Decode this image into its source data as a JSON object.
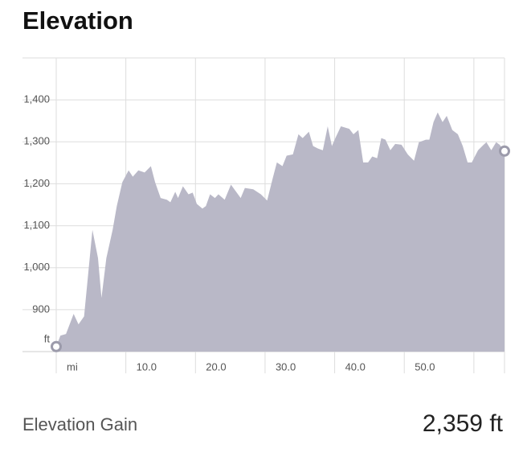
{
  "chart_data": {
    "type": "area",
    "title": "Elevation",
    "x_unit": "mi",
    "y_unit": "ft",
    "color": "#b9b8c7",
    "grid": true,
    "xlim": [
      0,
      64.4
    ],
    "ylim": [
      800,
      1500
    ],
    "xticks": [
      {
        "value": 0,
        "label": null
      },
      {
        "value": 10,
        "label": "10.0"
      },
      {
        "value": 20,
        "label": "20.0"
      },
      {
        "value": 30,
        "label": "30.0"
      },
      {
        "value": 40,
        "label": "40.0"
      },
      {
        "value": 50,
        "label": "50.0"
      },
      {
        "value": 60,
        "label": null
      }
    ],
    "yticks": [
      {
        "value": 900,
        "label": "900"
      },
      {
        "value": 1000,
        "label": "1,000"
      },
      {
        "value": 1100,
        "label": "1,100"
      },
      {
        "value": 1200,
        "label": "1,200"
      },
      {
        "value": 1300,
        "label": "1,300"
      },
      {
        "value": 1400,
        "label": "1,400"
      }
    ],
    "x": [
      0,
      0.6,
      1.4,
      2.5,
      3.2,
      4.0,
      5.2,
      6.0,
      6.5,
      7.2,
      8.1,
      8.7,
      9.5,
      10.4,
      11.0,
      11.8,
      12.7,
      13.6,
      14.2,
      15.0,
      15.9,
      16.4,
      17.1,
      17.5,
      18.2,
      19.0,
      19.6,
      20.2,
      21.0,
      21.5,
      22.1,
      22.8,
      23.3,
      24.2,
      25.1,
      26.5,
      27.1,
      28.3,
      29.4,
      30.3,
      31.1,
      31.7,
      32.5,
      33.1,
      34.0,
      34.8,
      35.4,
      36.3,
      36.9,
      37.6,
      38.3,
      39.0,
      39.6,
      40.1,
      40.9,
      42.1,
      42.7,
      43.4,
      44.1,
      44.8,
      45.4,
      46.1,
      46.7,
      47.3,
      48.0,
      48.7,
      49.6,
      50.5,
      51.4,
      52.1,
      53.1,
      53.6,
      54.2,
      54.8,
      55.5,
      56.1,
      56.9,
      57.7,
      58.4,
      59.1,
      59.7,
      60.6,
      61.4,
      61.8,
      62.5,
      63.2,
      63.7,
      64.4
    ],
    "values": [
      812,
      838,
      842,
      890,
      865,
      884,
      1090,
      1023,
      928,
      1023,
      1090,
      1147,
      1204,
      1232,
      1217,
      1232,
      1227,
      1242,
      1204,
      1166,
      1162,
      1156,
      1181,
      1166,
      1194,
      1175,
      1179,
      1152,
      1141,
      1147,
      1175,
      1166,
      1175,
      1162,
      1198,
      1166,
      1190,
      1187,
      1175,
      1160,
      1213,
      1251,
      1242,
      1267,
      1270,
      1318,
      1309,
      1324,
      1290,
      1284,
      1280,
      1337,
      1290,
      1309,
      1337,
      1331,
      1318,
      1328,
      1251,
      1251,
      1265,
      1261,
      1309,
      1305,
      1280,
      1295,
      1293,
      1270,
      1255,
      1299,
      1305,
      1305,
      1347,
      1370,
      1347,
      1362,
      1328,
      1318,
      1290,
      1251,
      1251,
      1280,
      1293,
      1299,
      1280,
      1299,
      1293,
      1278
    ]
  },
  "summary": {
    "label": "Elevation Gain",
    "value": "2,359 ft"
  }
}
